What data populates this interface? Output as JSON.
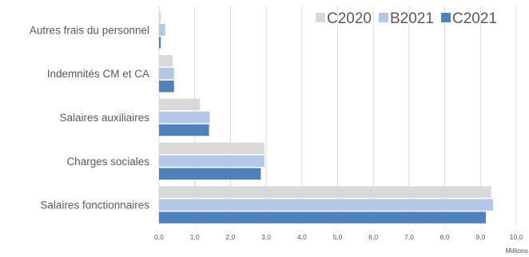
{
  "chart_data": {
    "type": "bar",
    "orientation": "horizontal",
    "categories": [
      "Autres frais du personnel",
      "Indemnités CM et CA",
      "Salaires auxiliaires",
      "Charges sociales",
      "Salaires fonctionnaires"
    ],
    "series": [
      {
        "name": "C2020",
        "color": "#d9d9d9",
        "values": [
          0.05,
          0.38,
          1.15,
          2.95,
          9.3
        ]
      },
      {
        "name": "B2021",
        "color": "#b4c7e7",
        "values": [
          0.17,
          0.42,
          1.42,
          2.95,
          9.35
        ]
      },
      {
        "name": "C2021",
        "color": "#4f81bd",
        "values": [
          0.05,
          0.42,
          1.4,
          2.85,
          9.15
        ]
      }
    ],
    "xlim": [
      0,
      10
    ],
    "xticks": [
      "0,0",
      "1,0",
      "2,0",
      "3,0",
      "4,0",
      "5,0",
      "6,0",
      "7,0",
      "8,0",
      "9,0",
      "10,0"
    ],
    "xunit": "Millions",
    "title": "",
    "xlabel": "",
    "ylabel": "",
    "grid": true,
    "legend_position": "top-right"
  }
}
